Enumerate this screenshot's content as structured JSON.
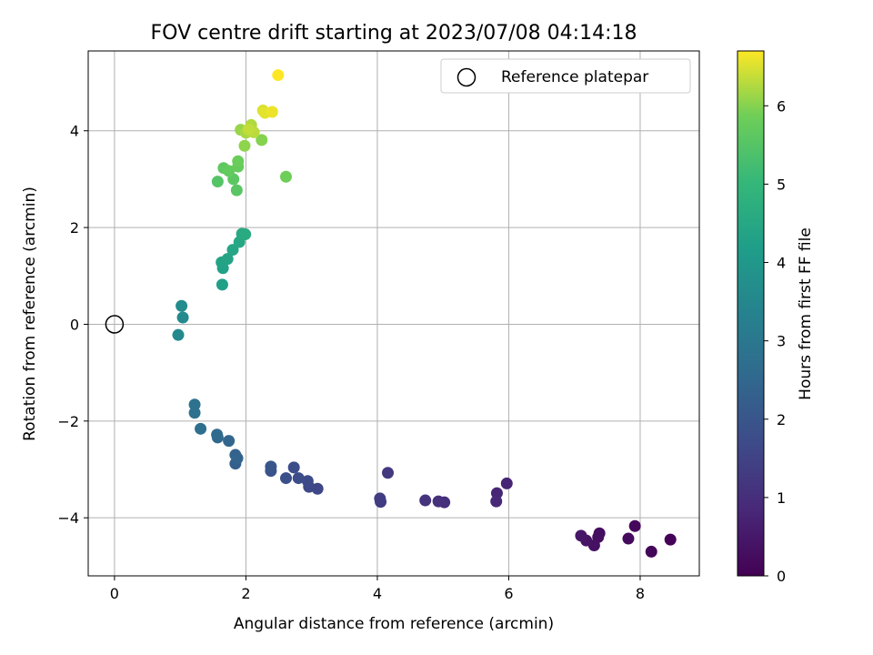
{
  "chart_data": {
    "type": "scatter",
    "title": "FOV centre drift starting at 2023/07/08 04:14:18",
    "xlabel": "Angular distance from reference (arcmin)",
    "ylabel": "Rotation from reference (arcmin)",
    "xlim": [
      -0.4,
      8.9
    ],
    "ylim": [
      -5.2,
      5.65
    ],
    "xticks": [
      0,
      2,
      4,
      6,
      8
    ],
    "yticks": [
      -4,
      -2,
      0,
      2,
      4
    ],
    "xtick_labels": [
      "0",
      "2",
      "4",
      "6",
      "8"
    ],
    "ytick_labels": [
      "−4",
      "−2",
      "0",
      "2",
      "4"
    ],
    "grid": true,
    "legend": {
      "label": "Reference platepar",
      "placement": "top-right"
    },
    "reference_point": {
      "x": 0,
      "y": 0
    },
    "colorbar": {
      "label": "Hours from first FF file",
      "range": [
        0,
        6.7
      ],
      "ticks": [
        0,
        1,
        2,
        3,
        4,
        5,
        6
      ],
      "tick_labels": [
        "0",
        "1",
        "2",
        "3",
        "4",
        "5",
        "6"
      ],
      "colormap": "viridis"
    },
    "series": [
      {
        "points": [
          {
            "x": 8.46,
            "y": -4.45,
            "c": 0.05
          },
          {
            "x": 8.17,
            "y": -4.7,
            "c": 0.1
          },
          {
            "x": 7.92,
            "y": -4.17,
            "c": 0.15
          },
          {
            "x": 7.82,
            "y": -4.43,
            "c": 0.2
          },
          {
            "x": 7.38,
            "y": -4.32,
            "c": 0.25
          },
          {
            "x": 7.36,
            "y": -4.4,
            "c": 0.3
          },
          {
            "x": 7.3,
            "y": -4.57,
            "c": 0.35
          },
          {
            "x": 7.18,
            "y": -4.47,
            "c": 0.4
          },
          {
            "x": 7.1,
            "y": -4.37,
            "c": 0.45
          },
          {
            "x": 5.97,
            "y": -3.29,
            "c": 0.75
          },
          {
            "x": 5.82,
            "y": -3.49,
            "c": 0.8
          },
          {
            "x": 5.81,
            "y": -3.66,
            "c": 0.85
          },
          {
            "x": 5.02,
            "y": -3.68,
            "c": 1.0
          },
          {
            "x": 4.93,
            "y": -3.66,
            "c": 1.05
          },
          {
            "x": 4.73,
            "y": -3.64,
            "c": 1.1
          },
          {
            "x": 4.16,
            "y": -3.07,
            "c": 1.25
          },
          {
            "x": 4.05,
            "y": -3.67,
            "c": 1.3
          },
          {
            "x": 4.04,
            "y": -3.6,
            "c": 1.35
          },
          {
            "x": 3.09,
            "y": -3.4,
            "c": 1.6
          },
          {
            "x": 2.96,
            "y": -3.36,
            "c": 1.65
          },
          {
            "x": 2.94,
            "y": -3.24,
            "c": 1.7
          },
          {
            "x": 2.8,
            "y": -3.18,
            "c": 1.75
          },
          {
            "x": 2.73,
            "y": -2.96,
            "c": 1.8
          },
          {
            "x": 2.61,
            "y": -3.18,
            "c": 1.85
          },
          {
            "x": 2.38,
            "y": -3.03,
            "c": 1.95
          },
          {
            "x": 2.38,
            "y": -2.94,
            "c": 2.0
          },
          {
            "x": 1.84,
            "y": -2.88,
            "c": 2.3
          },
          {
            "x": 1.84,
            "y": -2.7,
            "c": 2.35
          },
          {
            "x": 1.87,
            "y": -2.77,
            "c": 2.4
          },
          {
            "x": 1.74,
            "y": -2.41,
            "c": 2.45
          },
          {
            "x": 1.57,
            "y": -2.34,
            "c": 2.55
          },
          {
            "x": 1.56,
            "y": -2.28,
            "c": 2.6
          },
          {
            "x": 1.31,
            "y": -2.16,
            "c": 2.75
          },
          {
            "x": 1.22,
            "y": -1.83,
            "c": 2.8
          },
          {
            "x": 1.22,
            "y": -1.66,
            "c": 2.85
          },
          {
            "x": 0.97,
            "y": -0.22,
            "c": 3.55
          },
          {
            "x": 1.04,
            "y": 0.14,
            "c": 3.6
          },
          {
            "x": 1.02,
            "y": 0.38,
            "c": 3.65
          },
          {
            "x": 1.64,
            "y": 0.82,
            "c": 4.25
          },
          {
            "x": 1.65,
            "y": 1.16,
            "c": 4.3
          },
          {
            "x": 1.63,
            "y": 1.28,
            "c": 4.35
          },
          {
            "x": 1.72,
            "y": 1.35,
            "c": 4.4
          },
          {
            "x": 1.8,
            "y": 1.54,
            "c": 4.45
          },
          {
            "x": 1.9,
            "y": 1.7,
            "c": 4.5
          },
          {
            "x": 1.94,
            "y": 1.87,
            "c": 4.55
          },
          {
            "x": 1.99,
            "y": 1.86,
            "c": 4.6
          },
          {
            "x": 1.57,
            "y": 2.95,
            "c": 5.5
          },
          {
            "x": 1.86,
            "y": 2.77,
            "c": 5.55
          },
          {
            "x": 1.81,
            "y": 3.0,
            "c": 5.6
          },
          {
            "x": 1.66,
            "y": 3.23,
            "c": 5.65
          },
          {
            "x": 1.74,
            "y": 3.17,
            "c": 5.7
          },
          {
            "x": 1.88,
            "y": 3.26,
            "c": 5.75
          },
          {
            "x": 1.88,
            "y": 3.37,
            "c": 5.8
          },
          {
            "x": 2.61,
            "y": 3.05,
            "c": 5.85
          },
          {
            "x": 2.24,
            "y": 3.81,
            "c": 6.0
          },
          {
            "x": 1.98,
            "y": 3.69,
            "c": 6.05
          },
          {
            "x": 1.92,
            "y": 4.02,
            "c": 6.1
          },
          {
            "x": 2.0,
            "y": 3.96,
            "c": 6.2
          },
          {
            "x": 2.08,
            "y": 4.12,
            "c": 6.25
          },
          {
            "x": 2.12,
            "y": 3.97,
            "c": 6.3
          },
          {
            "x": 2.04,
            "y": 4.03,
            "c": 6.35
          },
          {
            "x": 2.26,
            "y": 4.42,
            "c": 6.5
          },
          {
            "x": 2.29,
            "y": 4.37,
            "c": 6.55
          },
          {
            "x": 2.4,
            "y": 4.39,
            "c": 6.6
          },
          {
            "x": 2.49,
            "y": 5.15,
            "c": 6.7
          }
        ]
      }
    ]
  }
}
